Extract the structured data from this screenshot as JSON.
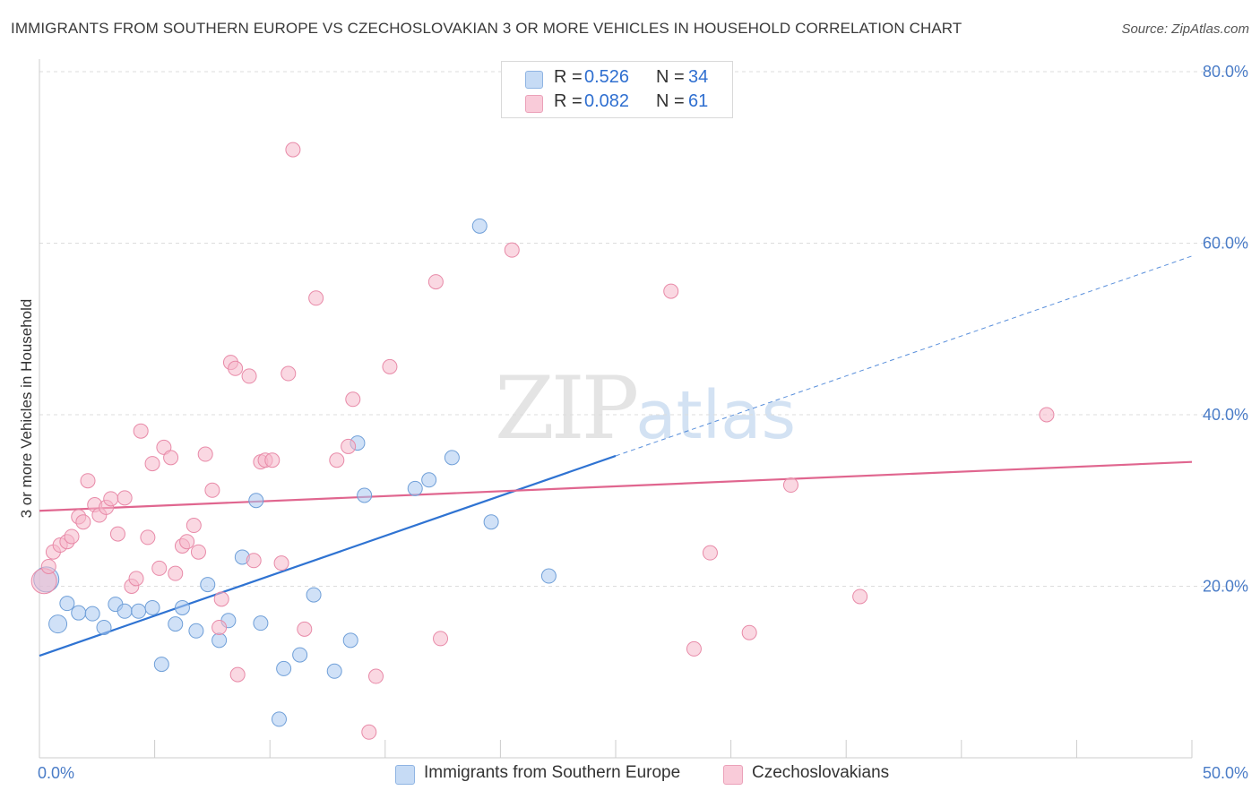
{
  "title": "IMMIGRANTS FROM SOUTHERN EUROPE VS CZECHOSLOVAKIAN 3 OR MORE VEHICLES IN HOUSEHOLD CORRELATION CHART",
  "source": "Source: ZipAtlas.com",
  "watermark": {
    "zip": "ZIP",
    "atlas": "atlas"
  },
  "legend": {
    "rows": [
      {
        "r_label": "R =",
        "r_value": "0.526",
        "n_label": "N =",
        "n_value": "34"
      },
      {
        "r_label": "R =",
        "r_value": "0.082",
        "n_label": "N =",
        "n_value": "61"
      }
    ]
  },
  "bottom_legend": [
    {
      "label": "Immigrants from Southern Europe"
    },
    {
      "label": "Czechoslovakians"
    }
  ],
  "colors": {
    "blue_fill": "#a9c8f0",
    "blue_stroke": "#6f9fd8",
    "blue_line": "#2f73d2",
    "pink_fill": "#f6b8cb",
    "pink_stroke": "#e88aa8",
    "pink_line": "#e0668f",
    "grid": "#dddddd",
    "tick_text": "#4a7cc7"
  },
  "chart_data": {
    "type": "scatter",
    "title": "IMMIGRANTS FROM SOUTHERN EUROPE VS CZECHOSLOVAKIAN 3 OR MORE VEHICLES IN HOUSEHOLD CORRELATION CHART",
    "xlabel": "",
    "ylabel": "3 or more Vehicles in Household",
    "xlim": [
      0,
      50
    ],
    "ylim": [
      0,
      80
    ],
    "x_tick_labels": [
      "0.0%",
      "50.0%"
    ],
    "y_tick_labels": [
      "20.0%",
      "40.0%",
      "60.0%",
      "80.0%"
    ],
    "y_ticks": [
      20,
      40,
      60,
      80
    ],
    "x_minor_ticks": [
      0,
      5,
      10,
      15,
      20,
      25,
      30,
      35,
      40,
      45,
      50
    ],
    "grid": true,
    "series": [
      {
        "name": "Immigrants from Southern Europe",
        "color": "blue",
        "R": 0.526,
        "N": 34,
        "trend": {
          "x0": 0,
          "y0": 11.9,
          "x1": 25,
          "y1": 35.2,
          "dashed_to_x": 50,
          "dashed_to_y": 58.5
        },
        "points": [
          [
            0.3,
            20.8,
            14
          ],
          [
            0.8,
            15.6,
            10
          ],
          [
            1.2,
            18.0,
            8
          ],
          [
            1.7,
            16.9,
            8
          ],
          [
            2.3,
            16.8,
            8
          ],
          [
            2.8,
            15.2,
            8
          ],
          [
            3.3,
            17.9,
            8
          ],
          [
            3.7,
            17.1,
            8
          ],
          [
            4.3,
            17.1,
            8
          ],
          [
            4.9,
            17.5,
            8
          ],
          [
            5.3,
            10.9,
            8
          ],
          [
            5.9,
            15.6,
            8
          ],
          [
            6.2,
            17.5,
            8
          ],
          [
            6.8,
            14.8,
            8
          ],
          [
            7.3,
            20.2,
            8
          ],
          [
            7.8,
            13.7,
            8
          ],
          [
            8.2,
            16.0,
            8
          ],
          [
            8.8,
            23.4,
            8
          ],
          [
            9.4,
            30.0,
            8
          ],
          [
            9.6,
            15.7,
            8
          ],
          [
            10.4,
            4.5,
            8
          ],
          [
            10.6,
            10.4,
            8
          ],
          [
            11.3,
            12.0,
            8
          ],
          [
            11.9,
            19.0,
            8
          ],
          [
            12.8,
            10.1,
            8
          ],
          [
            13.5,
            13.7,
            8
          ],
          [
            13.8,
            36.7,
            8
          ],
          [
            14.1,
            30.6,
            8
          ],
          [
            16.3,
            31.4,
            8
          ],
          [
            16.9,
            32.4,
            8
          ],
          [
            17.9,
            35.0,
            8
          ],
          [
            19.1,
            62.0,
            8
          ],
          [
            19.6,
            27.5,
            8
          ],
          [
            22.1,
            21.2,
            8
          ]
        ]
      },
      {
        "name": "Czechoslovakians",
        "color": "pink",
        "R": 0.082,
        "N": 61,
        "trend": {
          "x0": 0,
          "y0": 28.8,
          "x1": 50,
          "y1": 34.5
        },
        "points": [
          [
            0.2,
            20.6,
            14
          ],
          [
            0.4,
            22.3,
            8
          ],
          [
            0.6,
            24.0,
            8
          ],
          [
            0.9,
            24.8,
            8
          ],
          [
            1.2,
            25.2,
            8
          ],
          [
            1.4,
            25.8,
            8
          ],
          [
            1.7,
            28.1,
            8
          ],
          [
            1.9,
            27.5,
            8
          ],
          [
            2.1,
            32.3,
            8
          ],
          [
            2.4,
            29.5,
            8
          ],
          [
            2.6,
            28.3,
            8
          ],
          [
            2.9,
            29.2,
            8
          ],
          [
            3.1,
            30.2,
            8
          ],
          [
            3.4,
            26.1,
            8
          ],
          [
            3.7,
            30.3,
            8
          ],
          [
            4.0,
            20.0,
            8
          ],
          [
            4.2,
            20.9,
            8
          ],
          [
            4.4,
            38.1,
            8
          ],
          [
            4.7,
            25.7,
            8
          ],
          [
            4.9,
            34.3,
            8
          ],
          [
            5.2,
            22.1,
            8
          ],
          [
            5.4,
            36.2,
            8
          ],
          [
            5.7,
            35.0,
            8
          ],
          [
            5.9,
            21.5,
            8
          ],
          [
            6.2,
            24.7,
            8
          ],
          [
            6.4,
            25.2,
            8
          ],
          [
            6.7,
            27.1,
            8
          ],
          [
            6.9,
            24.0,
            8
          ],
          [
            7.2,
            35.4,
            8
          ],
          [
            7.5,
            31.2,
            8
          ],
          [
            7.8,
            15.2,
            8
          ],
          [
            7.9,
            18.5,
            8
          ],
          [
            8.3,
            46.1,
            8
          ],
          [
            8.5,
            45.4,
            8
          ],
          [
            8.6,
            9.7,
            8
          ],
          [
            9.1,
            44.5,
            8
          ],
          [
            9.3,
            23.0,
            8
          ],
          [
            9.6,
            34.5,
            8
          ],
          [
            9.8,
            34.7,
            8
          ],
          [
            10.1,
            34.7,
            8
          ],
          [
            10.5,
            22.7,
            8
          ],
          [
            10.8,
            44.8,
            8
          ],
          [
            11.0,
            70.9,
            8
          ],
          [
            11.5,
            15.0,
            8
          ],
          [
            12.0,
            53.6,
            8
          ],
          [
            12.9,
            34.7,
            8
          ],
          [
            13.4,
            36.3,
            8
          ],
          [
            13.6,
            41.8,
            8
          ],
          [
            14.3,
            3.0,
            8
          ],
          [
            14.6,
            9.5,
            8
          ],
          [
            15.2,
            45.6,
            8
          ],
          [
            17.2,
            55.5,
            8
          ],
          [
            17.4,
            13.9,
            8
          ],
          [
            20.5,
            59.2,
            8
          ],
          [
            27.4,
            54.4,
            8
          ],
          [
            28.4,
            12.7,
            8
          ],
          [
            29.1,
            23.9,
            8
          ],
          [
            30.8,
            14.6,
            8
          ],
          [
            32.6,
            31.8,
            8
          ],
          [
            35.6,
            18.8,
            8
          ],
          [
            43.7,
            40.0,
            8
          ]
        ]
      }
    ]
  }
}
